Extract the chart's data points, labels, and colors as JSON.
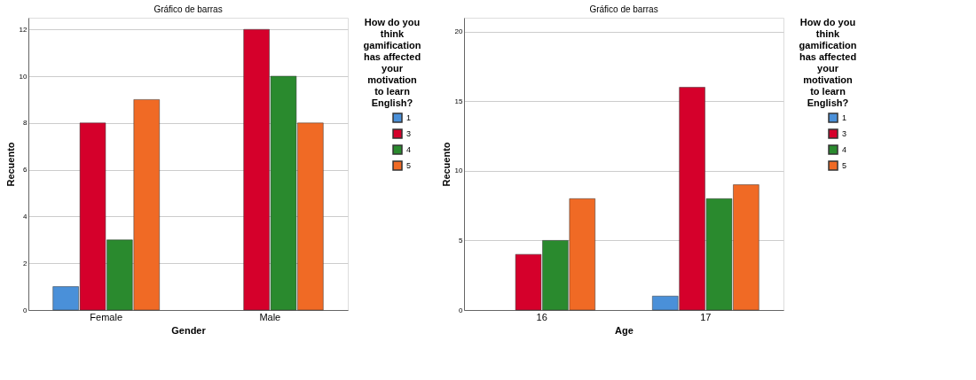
{
  "chart_data": [
    {
      "type": "bar",
      "title": "Gráfico de barras",
      "xlabel": "Gender",
      "ylabel": "Recuento",
      "legend_title": "How do you think gamification has affected your motivation to learn English?",
      "categories": [
        "Female",
        "Male"
      ],
      "ylim": [
        0,
        12.5
      ],
      "yticks": [
        0,
        2,
        4,
        6,
        8,
        10,
        12
      ],
      "grid": "y",
      "legend": "top right",
      "series": [
        {
          "name": "1",
          "color": "#4a90d9",
          "values": [
            1,
            null
          ]
        },
        {
          "name": "3",
          "color": "#d5002b",
          "values": [
            8,
            12
          ]
        },
        {
          "name": "4",
          "color": "#2a8a2e",
          "values": [
            3,
            10
          ]
        },
        {
          "name": "5",
          "color": "#f06a25",
          "values": [
            9,
            8
          ]
        }
      ]
    },
    {
      "type": "bar",
      "title": "Gráfico de barras",
      "xlabel": "Age",
      "ylabel": "Recuento",
      "legend_title": "How do you think gamification has affected your motivation to learn English?",
      "categories": [
        "16",
        "17"
      ],
      "ylim": [
        0,
        21
      ],
      "yticks": [
        0,
        5,
        10,
        15,
        20
      ],
      "grid": "y",
      "legend": "top right",
      "series": [
        {
          "name": "1",
          "color": "#4a90d9",
          "values": [
            null,
            1
          ]
        },
        {
          "name": "3",
          "color": "#d5002b",
          "values": [
            4,
            16
          ]
        },
        {
          "name": "4",
          "color": "#2a8a2e",
          "values": [
            5,
            8
          ]
        },
        {
          "name": "5",
          "color": "#f06a25",
          "values": [
            8,
            9
          ]
        }
      ]
    }
  ]
}
